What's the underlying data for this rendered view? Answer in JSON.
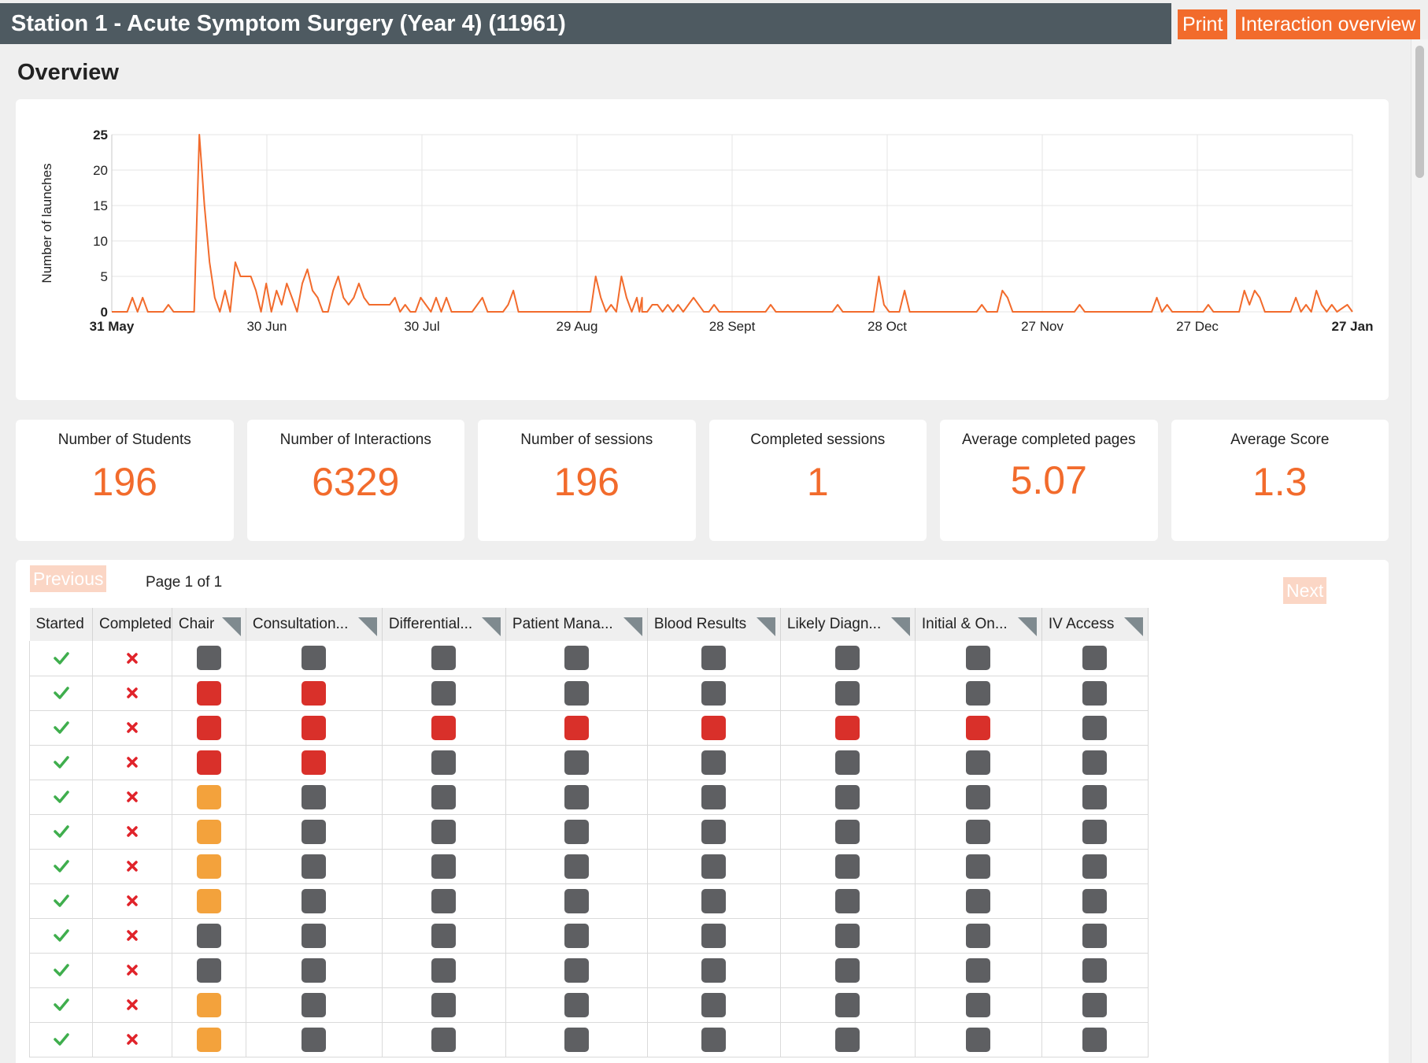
{
  "header": {
    "title": "Station 1 - Acute Symptom Surgery (Year 4) (11961)",
    "print_label": "Print",
    "interaction_label": "Interaction overview"
  },
  "overview_title": "Overview",
  "chart_data": {
    "type": "line",
    "ylabel": "Number of launches",
    "ylim": [
      0,
      25
    ],
    "yticks": [
      0,
      5,
      10,
      15,
      20,
      25
    ],
    "xticks": [
      "31 May",
      "30 Jun",
      "30 Jul",
      "29 Aug",
      "28 Sept",
      "28 Oct",
      "27 Nov",
      "27 Dec",
      "27 Jan"
    ],
    "x_range_days": [
      0,
      241
    ],
    "grid": true,
    "color": "#f26b2c",
    "series": [
      {
        "points": [
          [
            0,
            0
          ],
          [
            3,
            0
          ],
          [
            4,
            2
          ],
          [
            5,
            0
          ],
          [
            6,
            2
          ],
          [
            7,
            0
          ],
          [
            10,
            0
          ],
          [
            11,
            1
          ],
          [
            12,
            0
          ],
          [
            15,
            0
          ],
          [
            16,
            0
          ],
          [
            17,
            25
          ],
          [
            18,
            15
          ],
          [
            19,
            7
          ],
          [
            20,
            2
          ],
          [
            21,
            0
          ],
          [
            22,
            3
          ],
          [
            23,
            0
          ],
          [
            24,
            7
          ],
          [
            25,
            5
          ],
          [
            26,
            5
          ],
          [
            27,
            5
          ],
          [
            28,
            3
          ],
          [
            29,
            0
          ],
          [
            30,
            4
          ],
          [
            31,
            0
          ],
          [
            32,
            3
          ],
          [
            33,
            1
          ],
          [
            34,
            4
          ],
          [
            35,
            2
          ],
          [
            36,
            0
          ],
          [
            37,
            4
          ],
          [
            38,
            6
          ],
          [
            39,
            3
          ],
          [
            40,
            2
          ],
          [
            41,
            0
          ],
          [
            42,
            0
          ],
          [
            43,
            3
          ],
          [
            44,
            5
          ],
          [
            45,
            2
          ],
          [
            46,
            1
          ],
          [
            47,
            2
          ],
          [
            48,
            4
          ],
          [
            49,
            2
          ],
          [
            50,
            1
          ],
          [
            51,
            1
          ],
          [
            52,
            1
          ],
          [
            53,
            1
          ],
          [
            54,
            1
          ],
          [
            55,
            2
          ],
          [
            56,
            0
          ],
          [
            57,
            1
          ],
          [
            58,
            0
          ],
          [
            59,
            0
          ],
          [
            60,
            2
          ],
          [
            61,
            1
          ],
          [
            62,
            0
          ],
          [
            63,
            2
          ],
          [
            64,
            0
          ],
          [
            65,
            2
          ],
          [
            66,
            0
          ],
          [
            70,
            0
          ],
          [
            71,
            1
          ],
          [
            72,
            2
          ],
          [
            73,
            0
          ],
          [
            76,
            0
          ],
          [
            77,
            1
          ],
          [
            78,
            3
          ],
          [
            79,
            0
          ],
          [
            93,
            0
          ],
          [
            94,
            5
          ],
          [
            95,
            2
          ],
          [
            96,
            0
          ],
          [
            97,
            1
          ],
          [
            98,
            0
          ],
          [
            99,
            5
          ],
          [
            100,
            2
          ],
          [
            101,
            0
          ],
          [
            102,
            2
          ],
          [
            103,
            2
          ],
          [
            104,
            0
          ],
          [
            105,
            1
          ],
          [
            106,
            1
          ],
          [
            107,
            0
          ],
          [
            108,
            1
          ],
          [
            109,
            0
          ],
          [
            110,
            1
          ],
          [
            111,
            0
          ],
          [
            112,
            1
          ],
          [
            113,
            2
          ],
          [
            114,
            1
          ],
          [
            115,
            0
          ],
          [
            116,
            0
          ],
          [
            117,
            1
          ],
          [
            118,
            0
          ],
          [
            102.5,
            0
          ],
          [
            103,
            0
          ],
          [
            118,
            0
          ],
          [
            127,
            0
          ],
          [
            128,
            1
          ],
          [
            129,
            0
          ],
          [
            140,
            0
          ],
          [
            141,
            1
          ],
          [
            142,
            0
          ],
          [
            147,
            0
          ],
          [
            148,
            0
          ],
          [
            149,
            5
          ],
          [
            150,
            1
          ],
          [
            151,
            0
          ],
          [
            153,
            0
          ],
          [
            154,
            3
          ],
          [
            155,
            0
          ],
          [
            168,
            0
          ],
          [
            169,
            1
          ],
          [
            170,
            0
          ],
          [
            172,
            0
          ],
          [
            173,
            3
          ],
          [
            174,
            2
          ],
          [
            175,
            0
          ],
          [
            187,
            0
          ],
          [
            188,
            1
          ],
          [
            189,
            0
          ],
          [
            202,
            0
          ],
          [
            203,
            2
          ],
          [
            204,
            0
          ],
          [
            205,
            1
          ],
          [
            206,
            0
          ],
          [
            212,
            0
          ],
          [
            213,
            1
          ],
          [
            214,
            0
          ],
          [
            219,
            0
          ],
          [
            220,
            3
          ],
          [
            221,
            1
          ],
          [
            222,
            3
          ],
          [
            223,
            2
          ],
          [
            224,
            0
          ],
          [
            229,
            0
          ],
          [
            230,
            2
          ],
          [
            231,
            0
          ],
          [
            232,
            1
          ],
          [
            233,
            0
          ],
          [
            234,
            3
          ],
          [
            235,
            1
          ],
          [
            236,
            0
          ],
          [
            237,
            1
          ],
          [
            238,
            0
          ],
          [
            240,
            1
          ],
          [
            241,
            0
          ]
        ]
      }
    ]
  },
  "stats": [
    {
      "label": "Number of Students",
      "value": "196"
    },
    {
      "label": "Number of Interactions",
      "value": "6329"
    },
    {
      "label": "Number of sessions",
      "value": "196"
    },
    {
      "label": "Completed sessions",
      "value": "1"
    },
    {
      "label": "Average completed pages",
      "value": "5.07"
    },
    {
      "label": "Average Score",
      "value": "1.3"
    }
  ],
  "pager": {
    "previous_label": "Previous",
    "next_label": "Next",
    "page_info": "Page 1 of 1"
  },
  "table": {
    "columns": [
      "Started",
      "Completed",
      "Chair",
      "Consultation...",
      "Differential...",
      "Patient Mana...",
      "Blood Results",
      "Likely Diagn...",
      "Initial & On...",
      "IV Access"
    ],
    "rows": [
      [
        "grey",
        "grey",
        "grey",
        "grey",
        "grey",
        "grey",
        "grey",
        "grey"
      ],
      [
        "red",
        "red",
        "grey",
        "grey",
        "grey",
        "grey",
        "grey",
        "grey"
      ],
      [
        "red",
        "red",
        "red",
        "red",
        "red",
        "red",
        "red",
        "grey"
      ],
      [
        "red",
        "red",
        "grey",
        "grey",
        "grey",
        "grey",
        "grey",
        "grey"
      ],
      [
        "orange",
        "grey",
        "grey",
        "grey",
        "grey",
        "grey",
        "grey",
        "grey"
      ],
      [
        "orange",
        "grey",
        "grey",
        "grey",
        "grey",
        "grey",
        "grey",
        "grey"
      ],
      [
        "orange",
        "grey",
        "grey",
        "grey",
        "grey",
        "grey",
        "grey",
        "grey"
      ],
      [
        "orange",
        "grey",
        "grey",
        "grey",
        "grey",
        "grey",
        "grey",
        "grey"
      ],
      [
        "grey",
        "grey",
        "grey",
        "grey",
        "grey",
        "grey",
        "grey",
        "grey"
      ],
      [
        "grey",
        "grey",
        "grey",
        "grey",
        "grey",
        "grey",
        "grey",
        "grey"
      ],
      [
        "orange",
        "grey",
        "grey",
        "grey",
        "grey",
        "grey",
        "grey",
        "grey"
      ],
      [
        "orange",
        "grey",
        "grey",
        "grey",
        "grey",
        "grey",
        "grey",
        "grey"
      ]
    ],
    "started": [
      true,
      true,
      true,
      true,
      true,
      true,
      true,
      true,
      true,
      true,
      true,
      true
    ],
    "completed": [
      false,
      false,
      false,
      false,
      false,
      false,
      false,
      false,
      false,
      false,
      false,
      false
    ],
    "status_colors": {
      "grey": "#5e5f62",
      "red": "#d9302a",
      "orange": "#f3a23c"
    },
    "started_icon": "check-icon",
    "completed_icon": "cross-icon"
  }
}
